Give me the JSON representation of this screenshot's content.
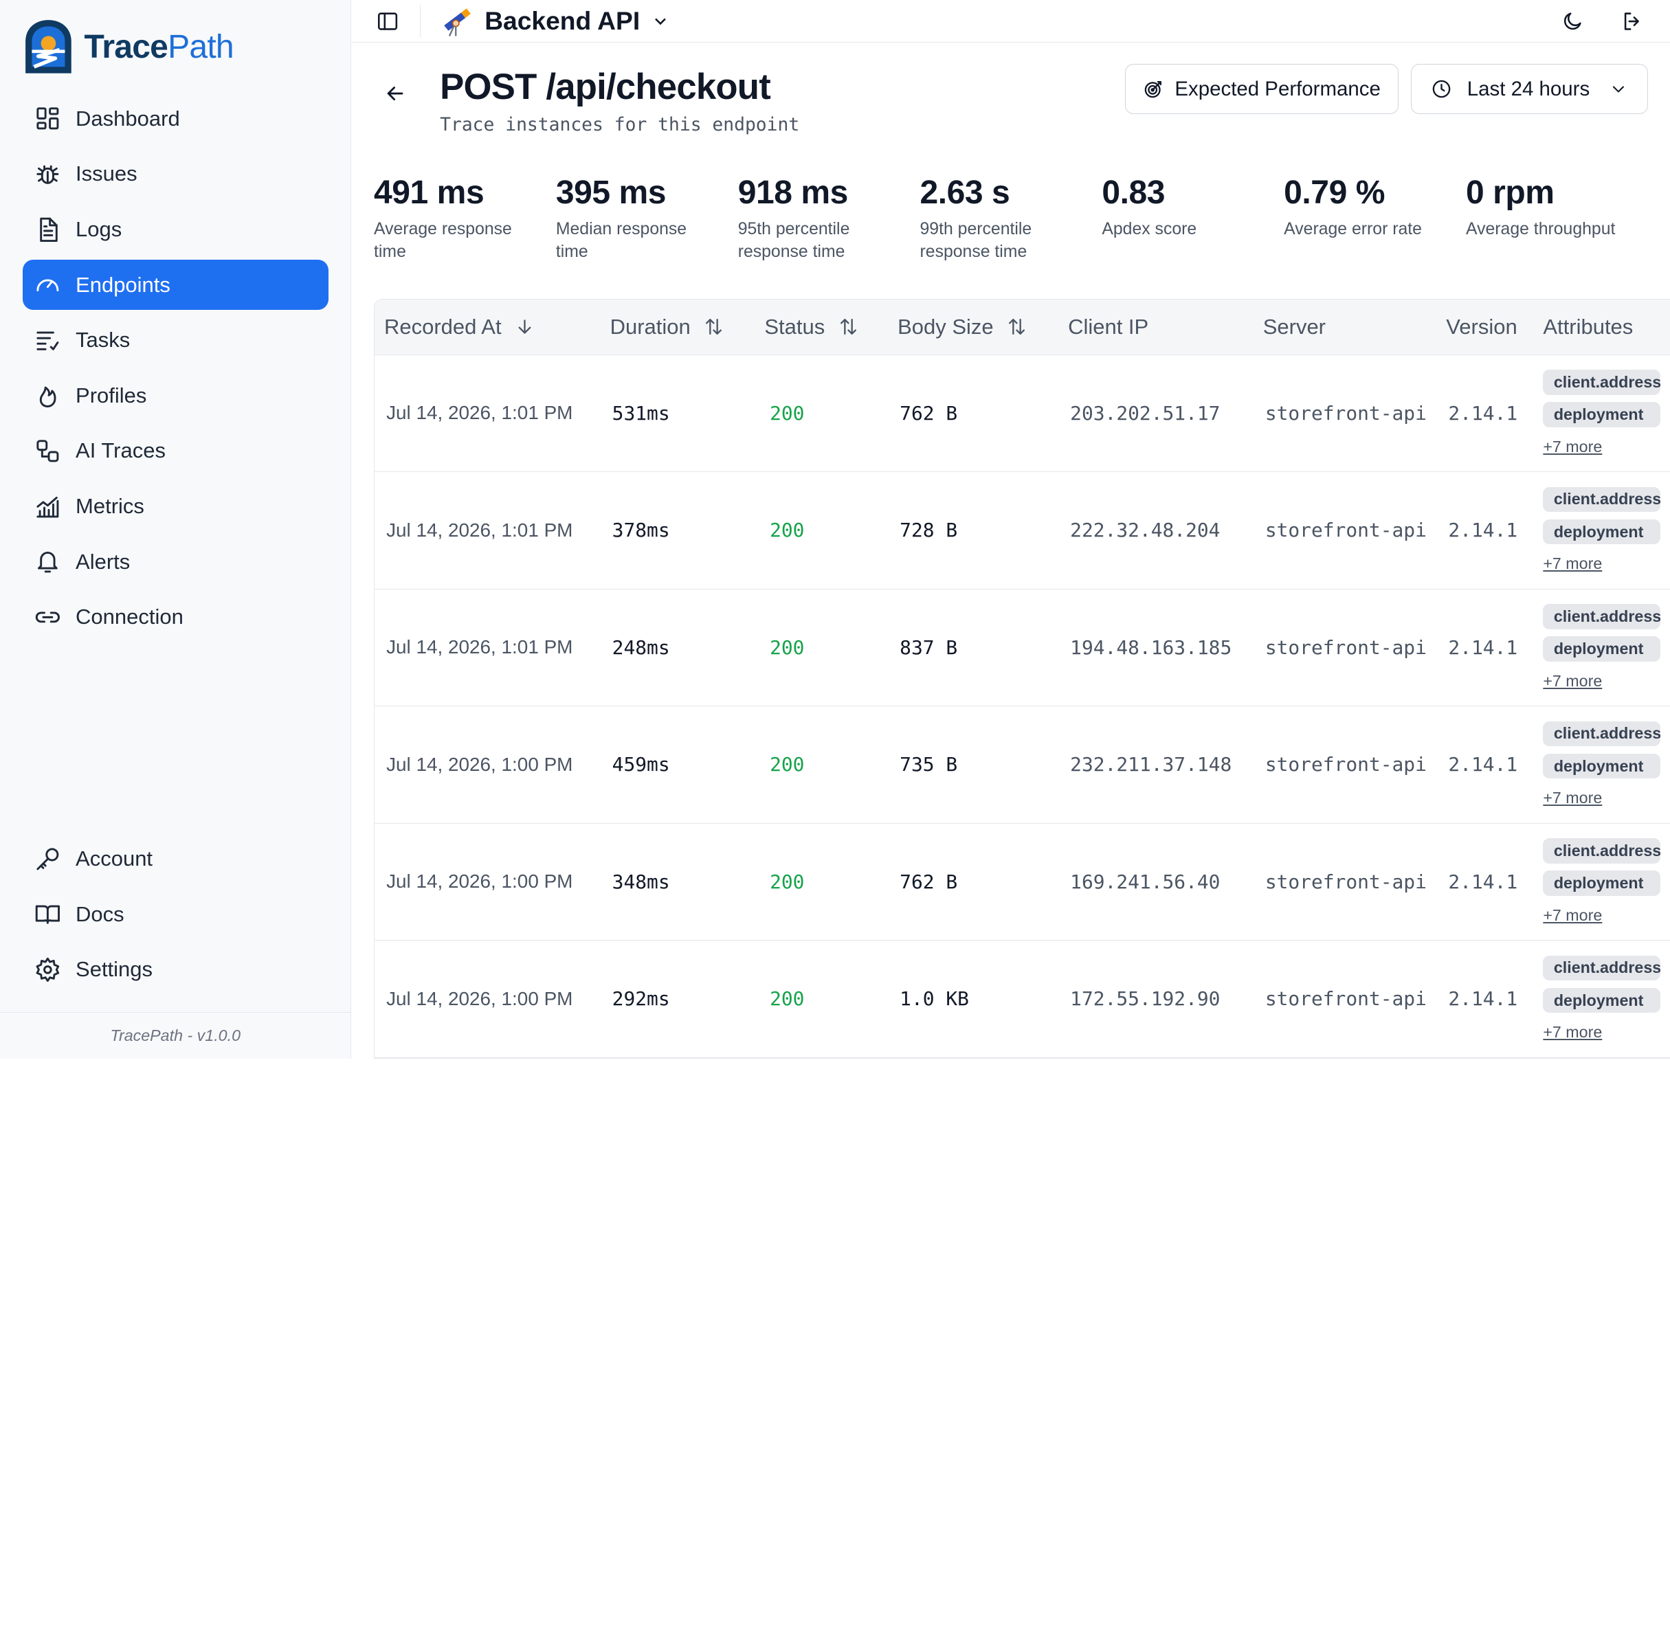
{
  "brand": {
    "name_a": "Trace",
    "name_b": "Path"
  },
  "nav": [
    {
      "label": "Dashboard",
      "icon": "dashboard-icon"
    },
    {
      "label": "Issues",
      "icon": "bug-icon"
    },
    {
      "label": "Logs",
      "icon": "document-icon"
    },
    {
      "label": "Endpoints",
      "icon": "gauge-icon",
      "active": true
    },
    {
      "label": "Tasks",
      "icon": "tasks-icon"
    },
    {
      "label": "Profiles",
      "icon": "flame-icon"
    },
    {
      "label": "AI Traces",
      "icon": "workflow-icon"
    },
    {
      "label": "Metrics",
      "icon": "chart-icon"
    },
    {
      "label": "Alerts",
      "icon": "bell-icon"
    },
    {
      "label": "Connection",
      "icon": "link-icon"
    }
  ],
  "nav_bottom": [
    {
      "label": "Account",
      "icon": "key-icon"
    },
    {
      "label": "Docs",
      "icon": "book-icon"
    },
    {
      "label": "Settings",
      "icon": "gear-icon"
    }
  ],
  "footer": "TracePath - v1.0.0",
  "topbar": {
    "project": "Backend API"
  },
  "page": {
    "title": "POST /api/checkout",
    "subtitle": "Trace instances for this endpoint",
    "expected_btn": "Expected Performance",
    "range_btn": "Last 24 hours"
  },
  "stats": [
    {
      "value": "491 ms",
      "label": "Average response time"
    },
    {
      "value": "395 ms",
      "label": "Median response time"
    },
    {
      "value": "918 ms",
      "label": "95th percentile response time"
    },
    {
      "value": "2.63 s",
      "label": "99th percentile response time"
    },
    {
      "value": "0.83",
      "label": "Apdex score"
    },
    {
      "value": "0.79 %",
      "label": "Average error rate"
    },
    {
      "value": "0 rpm",
      "label": "Average throughput"
    }
  ],
  "table": {
    "headers": [
      "Recorded At",
      "Duration",
      "Status",
      "Body Size",
      "Client IP",
      "Server",
      "Version",
      "Attributes"
    ],
    "rows": [
      {
        "recorded": "Jul 14, 2026, 1:01 PM",
        "duration": "531ms",
        "status": "200",
        "size": "762 B",
        "ip": "203.202.51.17",
        "server": "storefront-api",
        "version": "2.14.1",
        "attr1": "client.address",
        "attr2": "deployment",
        "more": "+7 more"
      },
      {
        "recorded": "Jul 14, 2026, 1:01 PM",
        "duration": "378ms",
        "status": "200",
        "size": "728 B",
        "ip": "222.32.48.204",
        "server": "storefront-api",
        "version": "2.14.1",
        "attr1": "client.address",
        "attr2": "deployment",
        "more": "+7 more"
      },
      {
        "recorded": "Jul 14, 2026, 1:01 PM",
        "duration": "248ms",
        "status": "200",
        "size": "837 B",
        "ip": "194.48.163.185",
        "server": "storefront-api",
        "version": "2.14.1",
        "attr1": "client.address",
        "attr2": "deployment",
        "more": "+7 more"
      },
      {
        "recorded": "Jul 14, 2026, 1:00 PM",
        "duration": "459ms",
        "status": "200",
        "size": "735 B",
        "ip": "232.211.37.148",
        "server": "storefront-api",
        "version": "2.14.1",
        "attr1": "client.address",
        "attr2": "deployment",
        "more": "+7 more"
      },
      {
        "recorded": "Jul 14, 2026, 1:00 PM",
        "duration": "348ms",
        "status": "200",
        "size": "762 B",
        "ip": "169.241.56.40",
        "server": "storefront-api",
        "version": "2.14.1",
        "attr1": "client.address",
        "attr2": "deployment",
        "more": "+7 more"
      },
      {
        "recorded": "Jul 14, 2026, 1:00 PM",
        "duration": "292ms",
        "status": "200",
        "size": "1.0 KB",
        "ip": "172.55.192.90",
        "server": "storefront-api",
        "version": "2.14.1",
        "attr1": "client.address",
        "attr2": "deployment",
        "more": "+7 more"
      }
    ]
  },
  "colors": {
    "accent": "#1f6ff1",
    "success": "#16a34a",
    "brand_dark": "#0f3a62"
  }
}
